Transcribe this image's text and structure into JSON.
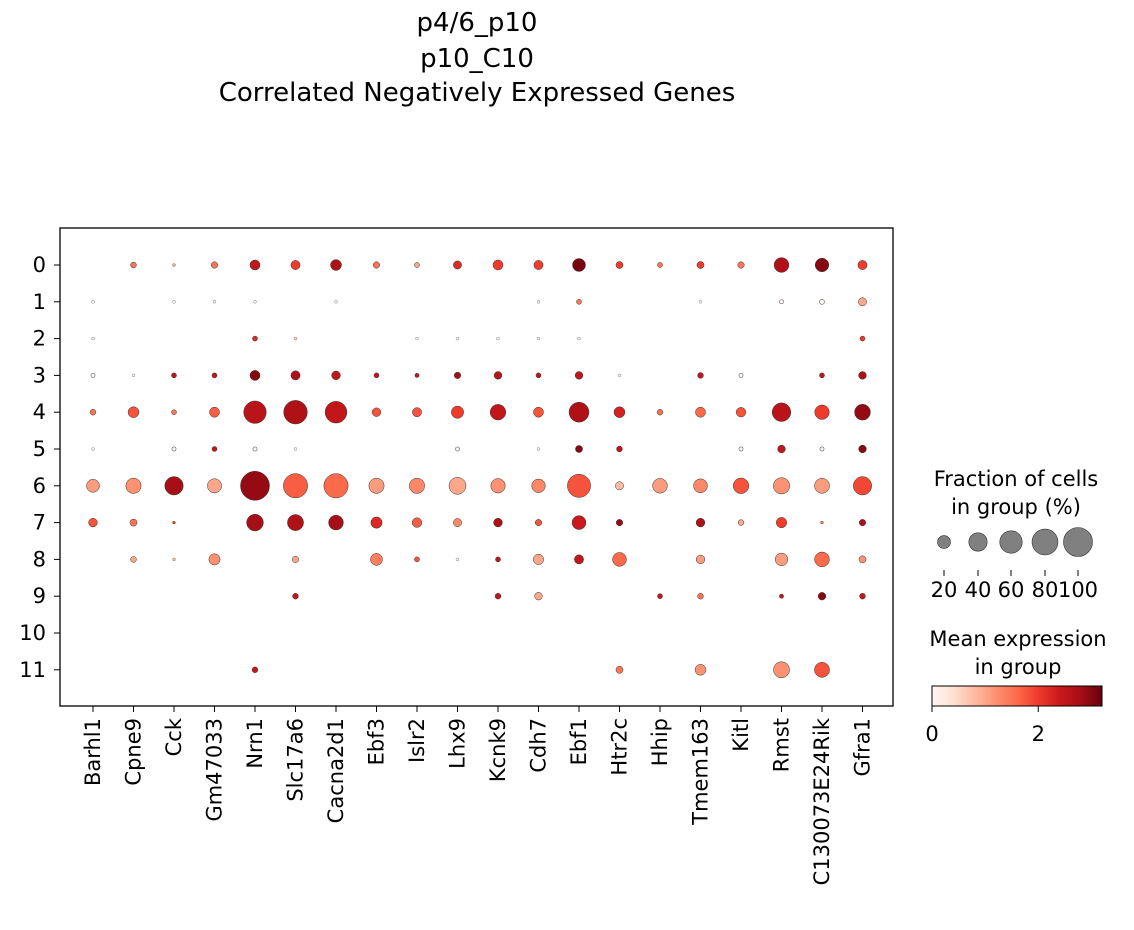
{
  "title_lines": [
    "p4/6_p10",
    "p10_C10",
    "Correlated Negatively Expressed Genes"
  ],
  "legends": {
    "size_title": [
      "Fraction of cells",
      "in group (%)"
    ],
    "size_ticks": [
      20,
      40,
      60,
      80,
      100
    ],
    "color_title": [
      "Mean expression",
      "in group"
    ],
    "color_ticks": [
      0,
      2
    ],
    "colormap": "Reds",
    "color_range": [
      0,
      3.2
    ]
  },
  "chart_data": {
    "type": "dotplot",
    "genes": [
      "Barhl1",
      "Cpne9",
      "Cck",
      "Gm47033",
      "Nrn1",
      "Slc17a6",
      "Cacna2d1",
      "Ebf3",
      "Islr2",
      "Lhx9",
      "Kcnk9",
      "Cdh7",
      "Ebf1",
      "Htr2c",
      "Hhip",
      "Tmem163",
      "Kitl",
      "Rmst",
      "C130073E24Rik",
      "Gfra1"
    ],
    "groups": [
      "0",
      "1",
      "2",
      "3",
      "4",
      "5",
      "6",
      "7",
      "8",
      "9",
      "10",
      "11"
    ],
    "fraction_pct": [
      [
        0,
        4,
        1,
        5,
        12,
        10,
        14,
        5,
        3,
        8,
        12,
        10,
        20,
        6,
        3,
        6,
        5,
        26,
        22,
        10
      ],
      [
        1,
        0,
        1,
        1,
        1,
        0,
        1,
        0,
        0,
        0,
        0,
        1,
        3,
        0,
        0,
        1,
        0,
        2,
        3,
        8
      ],
      [
        1,
        0,
        0,
        0,
        3,
        1,
        0,
        0,
        1,
        1,
        1,
        1,
        1,
        0,
        0,
        0,
        0,
        0,
        0,
        3
      ],
      [
        2,
        1,
        3,
        3,
        12,
        10,
        9,
        3,
        2,
        5,
        7,
        3,
        7,
        1,
        0,
        4,
        2,
        0,
        3,
        7
      ],
      [
        4,
        14,
        3,
        12,
        60,
        66,
        56,
        9,
        10,
        18,
        29,
        12,
        47,
        14,
        4,
        12,
        11,
        41,
        25,
        30
      ],
      [
        1,
        0,
        2,
        3,
        2,
        1,
        0,
        0,
        0,
        2,
        0,
        1,
        6,
        4,
        0,
        0,
        2,
        7,
        2,
        7
      ],
      [
        20,
        28,
        40,
        24,
        100,
        70,
        70,
        28,
        28,
        34,
        25,
        22,
        64,
        8,
        26,
        23,
        29,
        32,
        27,
        40
      ],
      [
        9,
        6,
        1,
        0,
        33,
        31,
        26,
        15,
        11,
        8,
        9,
        5,
        23,
        5,
        0,
        9,
        4,
        13,
        1,
        5
      ],
      [
        0,
        4,
        1,
        15,
        0,
        5,
        0,
        17,
        3,
        1,
        3,
        13,
        10,
        23,
        0,
        9,
        0,
        19,
        26,
        6
      ],
      [
        0,
        0,
        0,
        0,
        0,
        4,
        0,
        0,
        0,
        0,
        4,
        7,
        0,
        0,
        3,
        4,
        0,
        2,
        7,
        4
      ],
      [
        0,
        0,
        0,
        0,
        0,
        0,
        0,
        0,
        0,
        0,
        0,
        0,
        0,
        0,
        0,
        0,
        0,
        0,
        0,
        0
      ],
      [
        0,
        0,
        0,
        0,
        4,
        0,
        0,
        0,
        0,
        0,
        0,
        0,
        0,
        6,
        0,
        14,
        0,
        31,
        27,
        0
      ]
    ],
    "mean_expression": [
      [
        0,
        1.5,
        1.0,
        1.5,
        2.5,
        2.0,
        2.7,
        1.5,
        1.0,
        2.2,
        2.0,
        2.0,
        3.1,
        2.0,
        1.5,
        2.0,
        1.5,
        2.7,
        3.0,
        2.0
      ],
      [
        0,
        0,
        0,
        0,
        0,
        0,
        0,
        0,
        0,
        0,
        0,
        0,
        1.5,
        0,
        0,
        0,
        0,
        0,
        0,
        1.0
      ],
      [
        0,
        0,
        0,
        0,
        2.2,
        0.5,
        0,
        0,
        0,
        0,
        0,
        0,
        0,
        0,
        0,
        0,
        0,
        0,
        0,
        2.0
      ],
      [
        0,
        0,
        2.5,
        2.5,
        3.0,
        2.7,
        2.5,
        2.5,
        2.5,
        2.8,
        2.6,
        2.5,
        2.5,
        0,
        0,
        2.5,
        0,
        0,
        2.5,
        2.7
      ],
      [
        1.5,
        1.8,
        1.5,
        1.7,
        2.6,
        2.7,
        2.5,
        1.8,
        1.8,
        2.0,
        2.5,
        1.8,
        2.7,
        2.3,
        1.5,
        1.6,
        1.8,
        2.6,
        2.0,
        2.9
      ],
      [
        0,
        0,
        0,
        2.5,
        0,
        0,
        0,
        0,
        0,
        0,
        0,
        0,
        3.0,
        2.5,
        0,
        0,
        0,
        2.5,
        0,
        3.0
      ],
      [
        1.1,
        1.2,
        2.8,
        1.0,
        2.9,
        1.7,
        1.6,
        1.1,
        1.3,
        1.0,
        1.2,
        1.3,
        1.8,
        0.8,
        1.1,
        1.3,
        1.8,
        1.2,
        1.1,
        1.9
      ],
      [
        1.8,
        1.5,
        2.0,
        0,
        2.8,
        2.7,
        2.8,
        2.2,
        1.7,
        1.3,
        2.7,
        1.8,
        2.4,
        2.9,
        0,
        2.7,
        1.0,
        2.0,
        1.5,
        2.7
      ],
      [
        0,
        1.0,
        0.8,
        1.2,
        0,
        1.0,
        0,
        1.4,
        1.8,
        0,
        2.5,
        1.0,
        2.5,
        1.6,
        0,
        1.1,
        0,
        1.1,
        1.6,
        1.2
      ],
      [
        0,
        0,
        0,
        0,
        0,
        2.5,
        0,
        0,
        0,
        0,
        2.5,
        1.0,
        0,
        0,
        2.5,
        1.5,
        0,
        2.5,
        3.0,
        2.5
      ],
      [
        0,
        0,
        0,
        0,
        0,
        0,
        0,
        0,
        0,
        0,
        0,
        0,
        0,
        0,
        0,
        0,
        0,
        0,
        0,
        0
      ],
      [
        0,
        0,
        0,
        0,
        2.5,
        0,
        0,
        0,
        0,
        0,
        0,
        0,
        0,
        1.5,
        0,
        1.2,
        0,
        1.2,
        1.8,
        0
      ]
    ]
  }
}
